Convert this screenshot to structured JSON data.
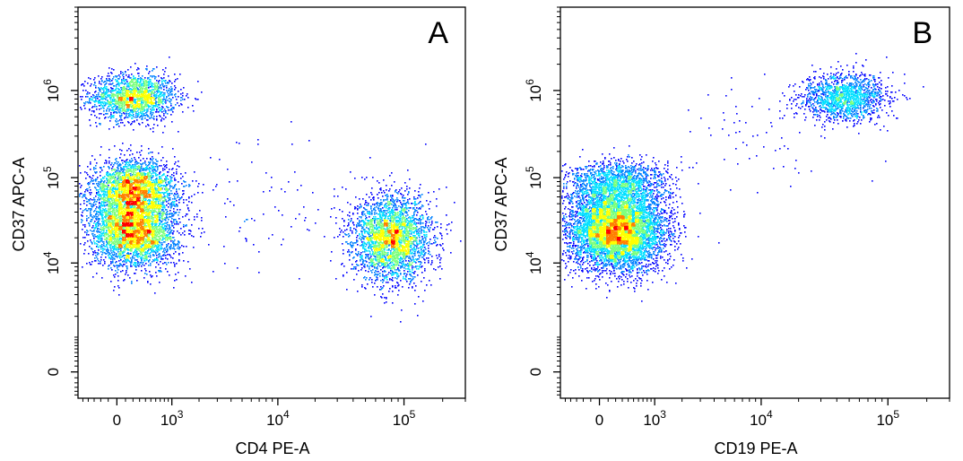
{
  "chart_data": [
    {
      "type": "scatter",
      "panel_label": "A",
      "xlabel": "CD4 PE-A",
      "ylabel": "CD37 APC-A",
      "x_scale": "biexponential",
      "y_scale": "biexponential",
      "xlim": [
        -600,
        300000
      ],
      "ylim": [
        -600,
        9000000
      ],
      "x_ticks": [
        {
          "value": 0,
          "base": "0",
          "exp": ""
        },
        {
          "value": 1000,
          "base": "10",
          "exp": "3"
        },
        {
          "value": 10000,
          "base": "10",
          "exp": "4"
        },
        {
          "value": 100000,
          "base": "10",
          "exp": "5"
        }
      ],
      "y_ticks": [
        {
          "value": 0,
          "base": "0",
          "exp": ""
        },
        {
          "value": 10000,
          "base": "10",
          "exp": "4"
        },
        {
          "value": 100000,
          "base": "10",
          "exp": "5"
        },
        {
          "value": 1000000,
          "base": "10",
          "exp": "6"
        }
      ],
      "colormap": [
        "#0000ff",
        "#0080ff",
        "#00e0ff",
        "#7cff7c",
        "#ffff00",
        "#ff8000",
        "#ff0000"
      ],
      "populations": [
        {
          "x_center": 200,
          "y_center": 850000,
          "x_spread": 0.22,
          "y_spread": 0.18,
          "count": 1800
        },
        {
          "x_center": 200,
          "y_center": 75000,
          "x_spread": 0.22,
          "y_spread": 0.22,
          "count": 2600
        },
        {
          "x_center": 200,
          "y_center": 25000,
          "x_spread": 0.22,
          "y_spread": 0.28,
          "count": 3600
        },
        {
          "x_center": 80000,
          "y_center": 20000,
          "x_spread": 0.2,
          "y_spread": 0.32,
          "count": 3000
        },
        {
          "x_center": 8000,
          "y_center": 40000,
          "x_spread": 0.9,
          "y_spread": 0.5,
          "count": 120
        }
      ],
      "grid": false
    },
    {
      "type": "scatter",
      "panel_label": "B",
      "xlabel": "CD19 PE-A",
      "ylabel": "CD37 APC-A",
      "x_scale": "biexponential",
      "y_scale": "biexponential",
      "xlim": [
        -600,
        300000
      ],
      "ylim": [
        -600,
        9000000
      ],
      "x_ticks": [
        {
          "value": 0,
          "base": "0",
          "exp": ""
        },
        {
          "value": 1000,
          "base": "10",
          "exp": "3"
        },
        {
          "value": 10000,
          "base": "10",
          "exp": "4"
        },
        {
          "value": 100000,
          "base": "10",
          "exp": "5"
        }
      ],
      "y_ticks": [
        {
          "value": 0,
          "base": "0",
          "exp": ""
        },
        {
          "value": 10000,
          "base": "10",
          "exp": "4"
        },
        {
          "value": 100000,
          "base": "10",
          "exp": "5"
        },
        {
          "value": 1000000,
          "base": "10",
          "exp": "6"
        }
      ],
      "colormap": [
        "#0000ff",
        "#0080ff",
        "#00e0ff",
        "#7cff7c",
        "#ffff00",
        "#ff8000",
        "#ff0000"
      ],
      "populations": [
        {
          "x_center": 200,
          "y_center": 25000,
          "x_spread": 0.25,
          "y_spread": 0.3,
          "count": 6500
        },
        {
          "x_center": 200,
          "y_center": 85000,
          "x_spread": 0.25,
          "y_spread": 0.18,
          "count": 1500
        },
        {
          "x_center": 45000,
          "y_center": 850000,
          "x_spread": 0.22,
          "y_spread": 0.18,
          "count": 1500
        },
        {
          "x_center": 10000,
          "y_center": 350000,
          "x_spread": 0.45,
          "y_spread": 0.45,
          "count": 60
        }
      ],
      "grid": false
    }
  ]
}
